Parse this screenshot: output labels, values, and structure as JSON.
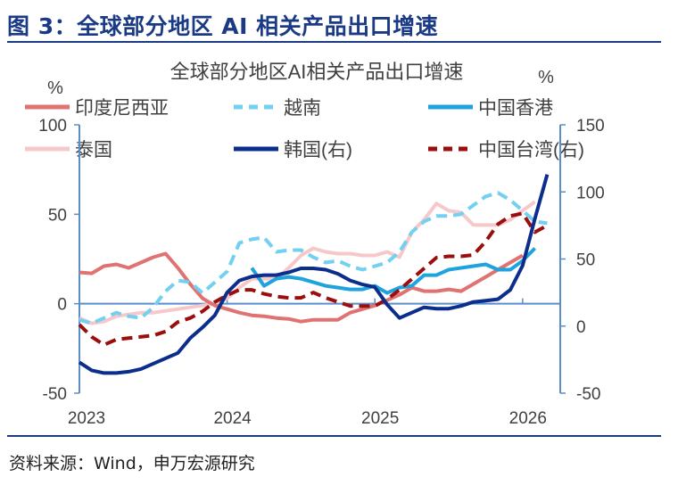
{
  "figure_title": "图 3：全球部分地区 AI 相关产品出口增速",
  "source": "资料来源：Wind，申万宏源研究",
  "chart_data": {
    "type": "line",
    "title": "全球部分地区AI相关产品出口增速",
    "y_left_unit": "%",
    "y_right_unit": "%",
    "y_left_lim": [
      -50,
      100
    ],
    "y_left_ticks": [
      "100",
      "50",
      "0",
      "-50"
    ],
    "y_right_lim": [
      -50,
      150
    ],
    "y_right_ticks": [
      "150",
      "100",
      "50",
      "0",
      "-50"
    ],
    "x_ticks": [
      "2023",
      "2024",
      "2025",
      "2026"
    ],
    "x_start": "2023-01",
    "x_frequency": "monthly",
    "grid": false,
    "legend_placement": "top",
    "series": [
      {
        "name": "印度尼西亚",
        "axis": "left",
        "color": "#e07272",
        "style": "solid",
        "values": [
          17.5,
          17,
          21,
          22,
          20,
          23,
          26,
          28,
          20,
          11,
          3,
          -1,
          -3,
          -5,
          -6.5,
          -7,
          -8,
          -8.5,
          -10,
          -9,
          -9,
          -9,
          -5,
          -3,
          -1,
          2,
          5,
          9,
          7,
          7,
          8,
          7,
          11,
          15,
          19,
          23,
          27,
          null,
          null
        ]
      },
      {
        "name": "越南",
        "axis": "left",
        "color": "#74d0f0",
        "style": "dashed",
        "values": [
          -9,
          -11,
          -8,
          -5,
          -7,
          -8,
          -2,
          7,
          13,
          12,
          6,
          12,
          18,
          34,
          36,
          37,
          29,
          30,
          30,
          26,
          23,
          24,
          21,
          19,
          21,
          23,
          29,
          40,
          46,
          49,
          49,
          50,
          55,
          60,
          62,
          58,
          52,
          46,
          45
        ]
      },
      {
        "name": "中国香港",
        "axis": "left",
        "color": "#1ea3df",
        "style": "solid",
        "values": [
          null,
          null,
          null,
          null,
          null,
          null,
          null,
          null,
          null,
          null,
          null,
          null,
          null,
          null,
          20,
          10,
          14,
          15,
          14,
          12,
          10,
          9,
          8,
          8,
          10,
          6,
          9,
          10,
          16,
          16,
          19,
          20,
          21,
          22,
          19,
          19,
          24,
          31,
          null
        ]
      },
      {
        "name": "泰国",
        "axis": "left",
        "color": "#f6c8ca",
        "style": "solid",
        "values": [
          -8,
          -11,
          -10,
          -7,
          -6,
          -5,
          -5,
          -4,
          -3,
          -2,
          -1,
          0,
          3,
          9,
          14,
          14,
          14,
          20,
          27,
          31,
          29,
          28,
          28,
          27,
          27,
          29,
          26,
          40,
          47,
          56,
          52,
          51,
          44,
          44,
          44,
          47,
          52,
          57,
          null
        ]
      },
      {
        "name": "韩国(右)",
        "axis": "right",
        "color": "#0b2d8c",
        "style": "solid",
        "values": [
          -27,
          -33,
          -35,
          -35,
          -34,
          -32,
          -28,
          -24,
          -20,
          -9,
          -1,
          8,
          25,
          34,
          37,
          38,
          38,
          40,
          43,
          43,
          42,
          39,
          34,
          31,
          29,
          16,
          6,
          10,
          14,
          13,
          13,
          15,
          18,
          19,
          20,
          27,
          45,
          80,
          113
        ]
      },
      {
        "name": "中国台湾(右)",
        "axis": "right",
        "color": "#9b0e0e",
        "style": "dashed",
        "values": [
          1,
          -8,
          -14,
          -10,
          -9,
          -8,
          -7,
          -4,
          3,
          6,
          11,
          18,
          23,
          27,
          27,
          24,
          22,
          21,
          21,
          25,
          21,
          18,
          15,
          15,
          15,
          20,
          27,
          35,
          43,
          51,
          52,
          52,
          53,
          63,
          76,
          82,
          84,
          70,
          75
        ]
      }
    ]
  }
}
